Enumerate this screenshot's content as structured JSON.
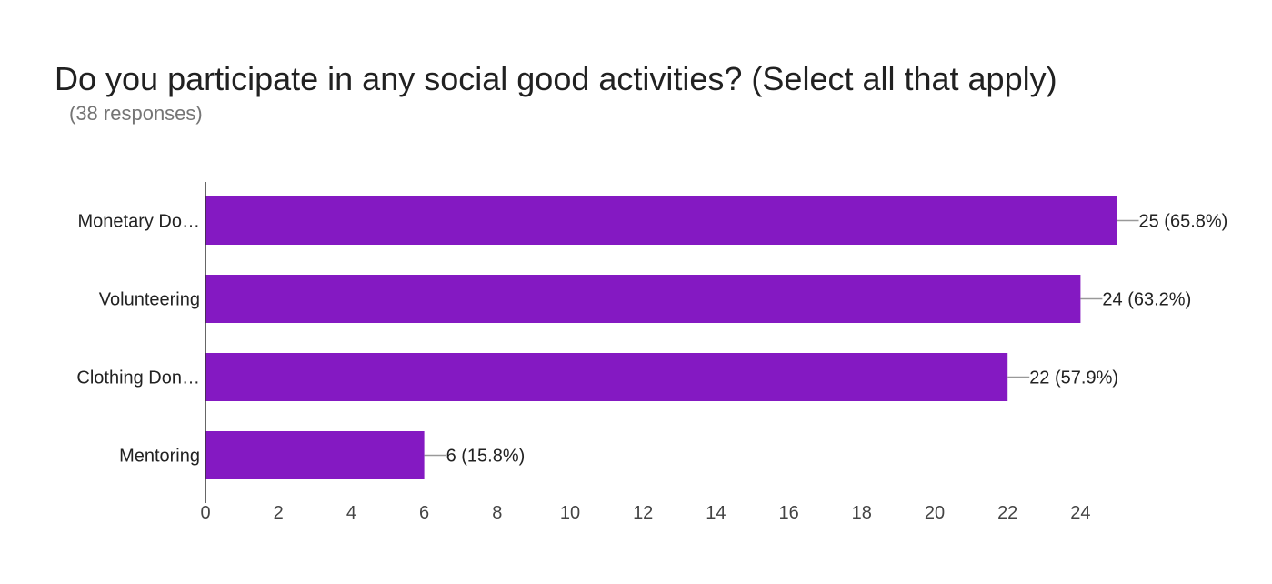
{
  "title": "Do you participate in any social good activities? (Select all that apply)",
  "subtitle": "(38 responses)",
  "colors": {
    "bar": "#8419c2",
    "axis": "#333333",
    "leader": "#999999"
  },
  "chart_data": {
    "type": "bar",
    "orientation": "horizontal",
    "categories": [
      "Monetary Do…",
      "Volunteering",
      "Clothing Don…",
      "Mentoring"
    ],
    "values": [
      25,
      24,
      22,
      6
    ],
    "data_labels": [
      "25 (65.8%)",
      "24 (63.2%)",
      "22 (57.9%)",
      "6 (15.8%)"
    ],
    "xticks": [
      0,
      2,
      4,
      6,
      8,
      10,
      12,
      14,
      16,
      18,
      20,
      22,
      24
    ],
    "xlim": [
      0,
      25
    ],
    "xlabel": "",
    "ylabel": "",
    "grid": false,
    "legend": "none"
  }
}
